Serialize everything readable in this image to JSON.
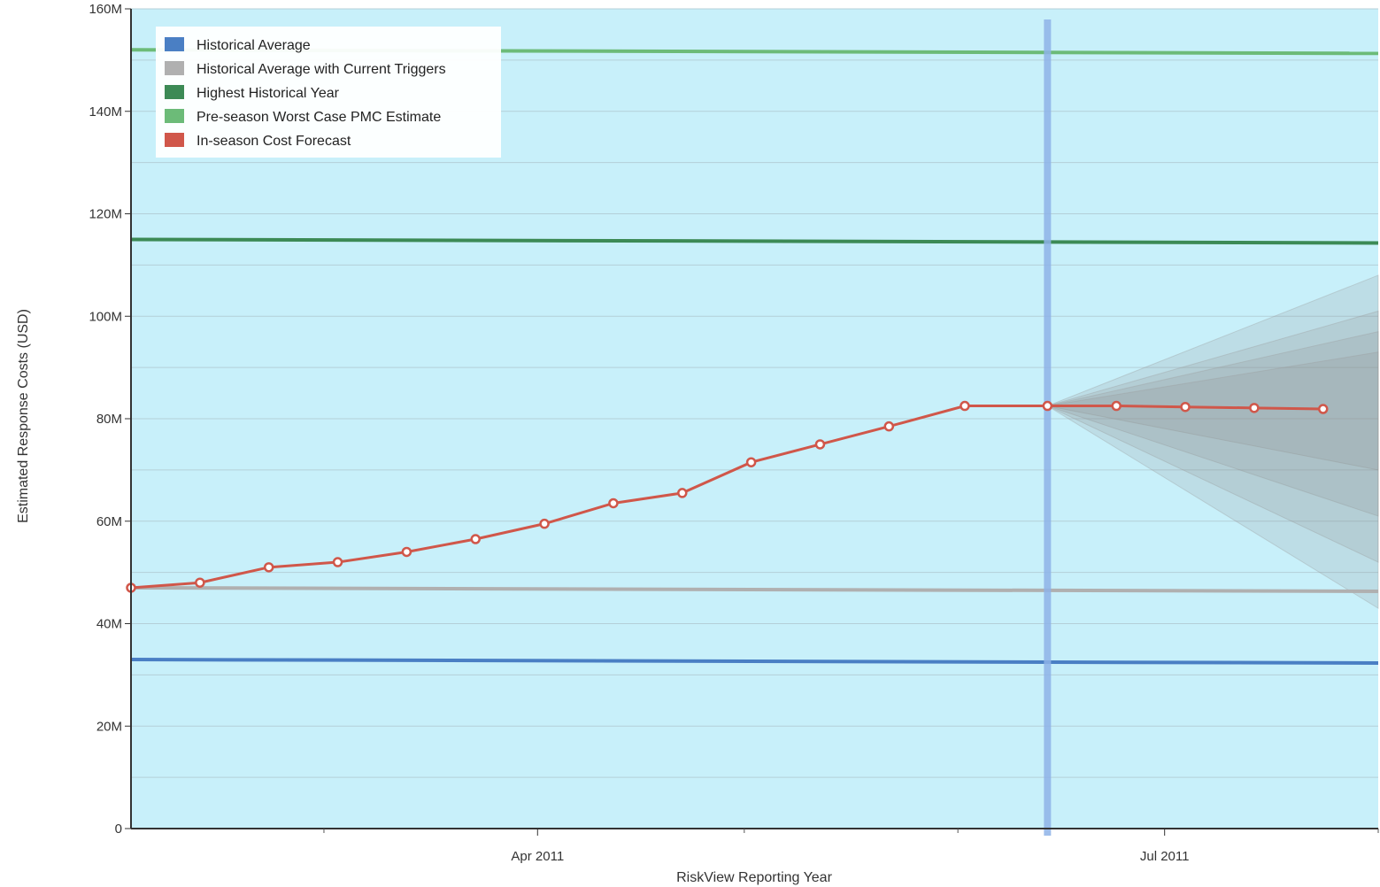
{
  "chart_data": {
    "type": "line",
    "title": "",
    "xlabel": "RiskView Reporting Year",
    "ylabel": "Estimated Response Costs (USD)",
    "ylim": [
      0,
      160000000
    ],
    "yticks": [
      {
        "value": 0,
        "label": "0"
      },
      {
        "value": 20000000,
        "label": "20M"
      },
      {
        "value": 40000000,
        "label": "40M"
      },
      {
        "value": 60000000,
        "label": "60M"
      },
      {
        "value": 80000000,
        "label": "80M"
      },
      {
        "value": 100000000,
        "label": "100M"
      },
      {
        "value": 120000000,
        "label": "120M"
      },
      {
        "value": 140000000,
        "label": "140M"
      },
      {
        "value": 160000000,
        "label": "160M"
      }
    ],
    "xlim": [
      "2011-02-01",
      "2011-08-01"
    ],
    "xticks": [
      {
        "value": "2011-04-01",
        "label": "Apr 2011"
      },
      {
        "value": "2011-07-01",
        "label": "Jul 2011"
      }
    ],
    "x_minor_ticks": [
      "2011-03-01",
      "2011-05-01",
      "2011-06-01",
      "2011-08-01"
    ],
    "current_date_marker": "2011-06-14",
    "grid": true,
    "legend_position": "top-left",
    "series": [
      {
        "name": "Historical Average",
        "color": "#4a7fc4",
        "style": "flat",
        "x": [
          "2011-02-01",
          "2011-08-01"
        ],
        "values": [
          33000000,
          33000000
        ]
      },
      {
        "name": "Historical Average with Current Triggers",
        "color": "#b0b0b0",
        "style": "flat",
        "x": [
          "2011-02-01",
          "2011-08-01"
        ],
        "values": [
          47000000,
          47000000
        ]
      },
      {
        "name": "Highest Historical Year",
        "color": "#3c8a55",
        "style": "flat",
        "x": [
          "2011-02-01",
          "2011-08-01"
        ],
        "values": [
          115000000,
          115000000
        ]
      },
      {
        "name": "Pre-season Worst Case PMC Estimate",
        "color": "#6cbb78",
        "style": "flat",
        "x": [
          "2011-02-01",
          "2011-08-01"
        ],
        "values": [
          152000000,
          152000000
        ]
      },
      {
        "name": "In-season Cost Forecast",
        "color": "#d0574a",
        "style": "markers",
        "x": [
          "2011-02-01",
          "2011-02-11",
          "2011-02-21",
          "2011-03-03",
          "2011-03-13",
          "2011-03-23",
          "2011-04-02",
          "2011-04-12",
          "2011-04-22",
          "2011-05-02",
          "2011-05-12",
          "2011-05-22",
          "2011-06-02",
          "2011-06-14",
          "2011-06-24",
          "2011-07-04",
          "2011-07-14",
          "2011-07-24",
          "2011-08-03",
          "2011-08-13"
        ],
        "values": [
          47000000,
          48000000,
          51000000,
          52000000,
          54000000,
          56500000,
          59500000,
          63500000,
          65500000,
          71500000,
          75000000,
          78500000,
          82500000,
          82500000,
          82500000,
          82300000,
          82100000,
          81900000,
          81700000,
          81500000
        ]
      }
    ],
    "forecast_band": {
      "x": [
        "2011-06-14",
        "2011-08-03"
      ],
      "start_value": 82500000,
      "upper_values": [
        108000000,
        101000000,
        97000000,
        93000000
      ],
      "lower_values": [
        70000000,
        61000000,
        52000000,
        43000000
      ]
    }
  }
}
